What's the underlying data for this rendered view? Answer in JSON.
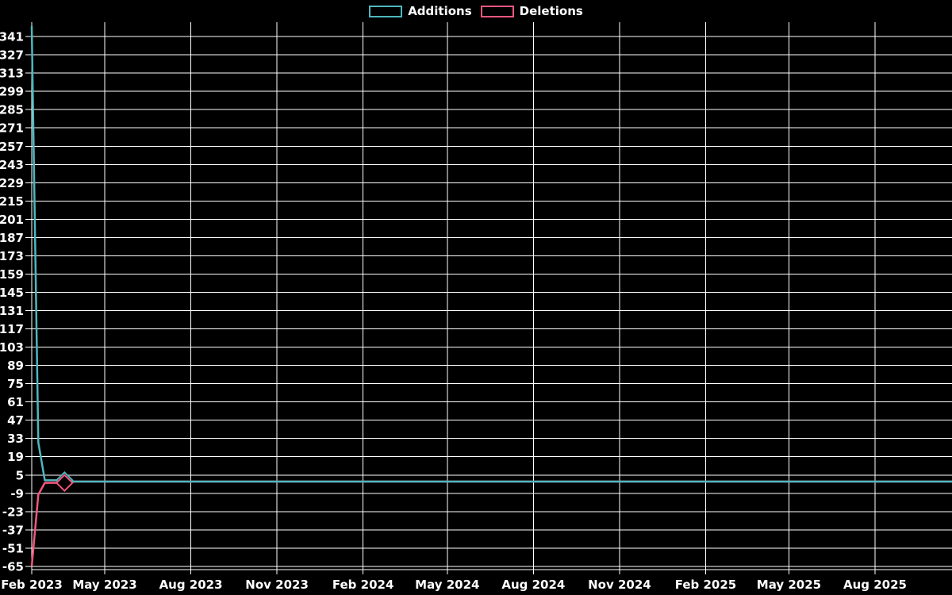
{
  "chart_data": {
    "type": "line",
    "title": "",
    "background": "#000000",
    "grid": "on",
    "legend": {
      "position": "top",
      "entries": [
        {
          "label": "Additions",
          "color": "#4db8be"
        },
        {
          "label": "Deletions",
          "color": "#f3577e"
        }
      ]
    },
    "x_axis": {
      "type": "time",
      "ticks": [
        {
          "label": "Feb 2023",
          "date": "2023-02-12"
        },
        {
          "label": "May 2023",
          "date": "2023-05-01"
        },
        {
          "label": "Aug 2023",
          "date": "2023-08-01"
        },
        {
          "label": "Nov 2023",
          "date": "2023-11-01"
        },
        {
          "label": "Feb 2024",
          "date": "2024-02-01"
        },
        {
          "label": "May 2024",
          "date": "2024-05-01"
        },
        {
          "label": "Aug 2024",
          "date": "2024-08-01"
        },
        {
          "label": "Nov 2024",
          "date": "2024-11-01"
        },
        {
          "label": "Feb 2025",
          "date": "2025-02-01"
        },
        {
          "label": "May 2025",
          "date": "2025-05-01"
        },
        {
          "label": "Aug 2025",
          "date": "2025-08-01"
        }
      ],
      "range": [
        "2023-02-12",
        "2025-10-26"
      ]
    },
    "y_axis": {
      "min": -65,
      "max": 349,
      "tick_step": 14,
      "ticks": [
        341,
        327,
        313,
        299,
        285,
        271,
        257,
        243,
        229,
        215,
        201,
        187,
        173,
        159,
        145,
        131,
        117,
        103,
        89,
        75,
        61,
        47,
        33,
        19,
        5,
        -9,
        -23,
        -37,
        -51,
        -65
      ]
    },
    "series": [
      {
        "name": "Additions",
        "color": "#4db8be",
        "marker": "diamond",
        "points": [
          [
            "2023-02-12",
            349
          ],
          [
            "2023-02-19",
            30
          ],
          [
            "2023-02-26",
            1
          ],
          [
            "2023-03-19",
            1
          ],
          [
            "2023-03-26",
            0
          ],
          [
            "2025-10-26",
            0
          ]
        ],
        "marker_points": [
          [
            "2023-03-19",
            1
          ]
        ]
      },
      {
        "name": "Deletions",
        "color": "#f3577e",
        "marker": "diamond",
        "points": [
          [
            "2023-02-12",
            -65
          ],
          [
            "2023-02-19",
            -10
          ],
          [
            "2023-02-26",
            -1
          ],
          [
            "2023-03-19",
            -1
          ],
          [
            "2023-03-26",
            0
          ],
          [
            "2025-10-26",
            0
          ]
        ],
        "marker_points": [
          [
            "2023-03-19",
            -1
          ]
        ]
      }
    ]
  }
}
